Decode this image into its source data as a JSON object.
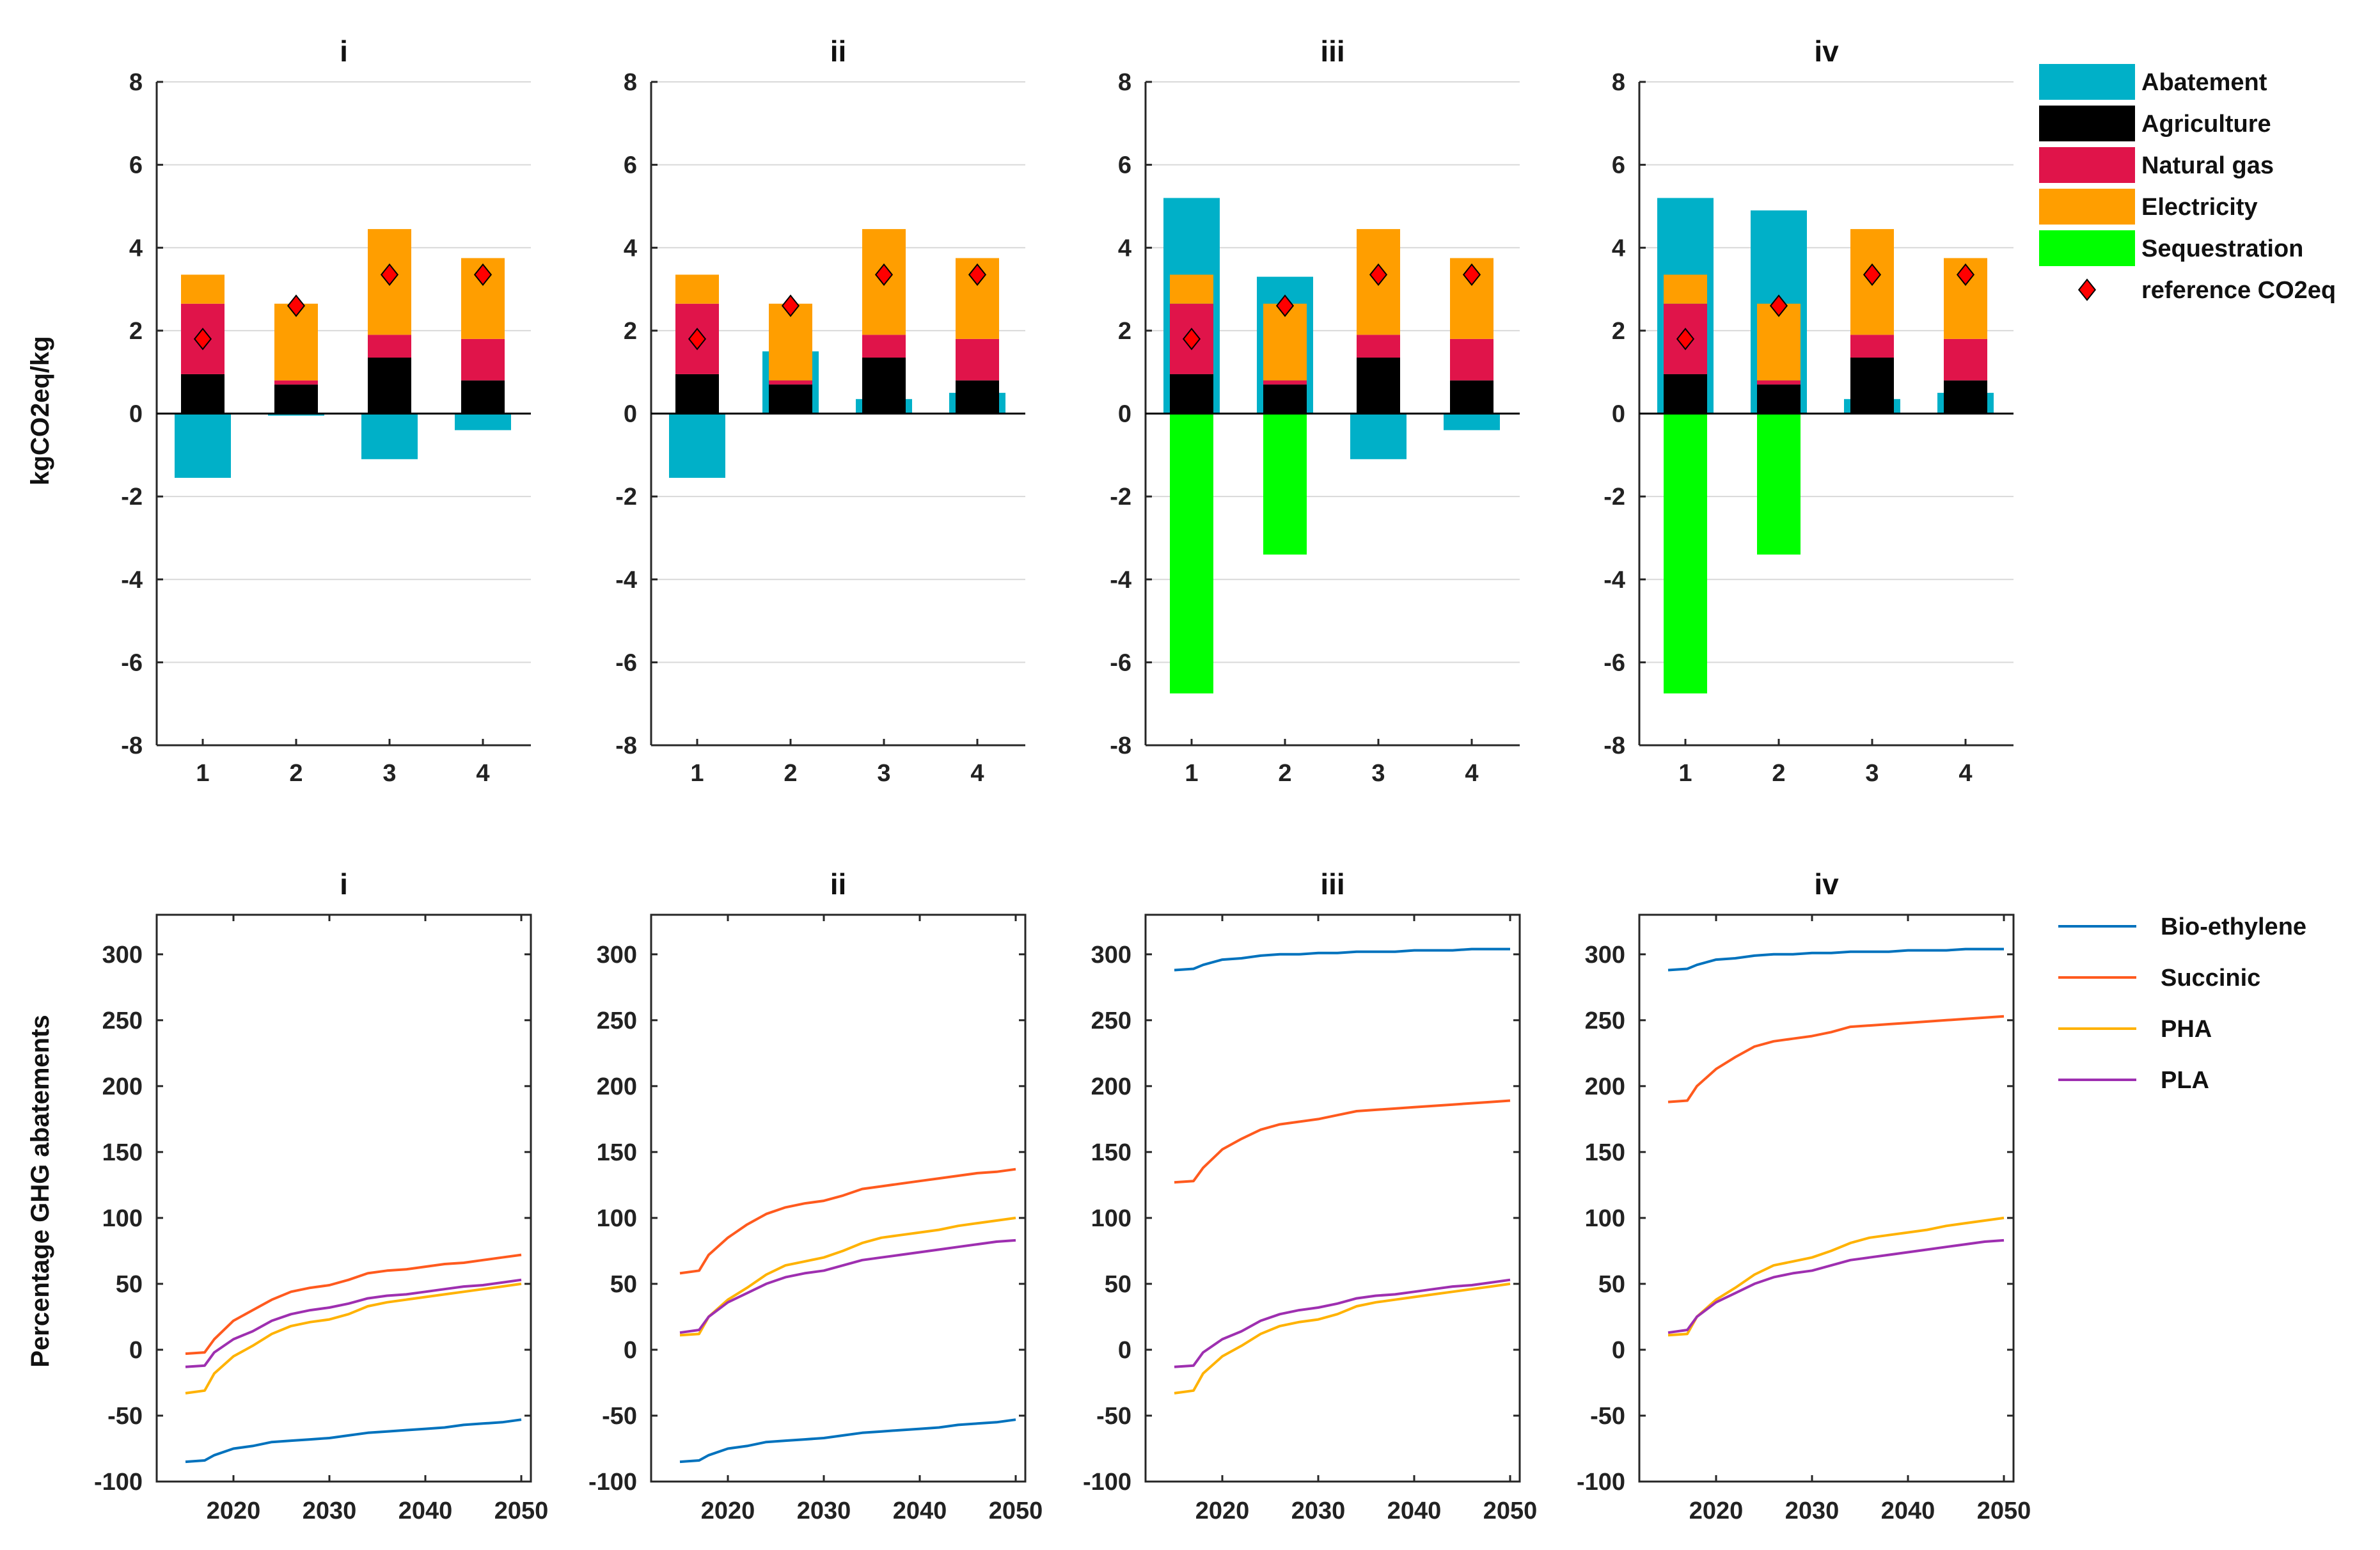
{
  "colors": {
    "abatement": "#00b0c8",
    "agriculture": "#000000",
    "natural_gas": "#e0144a",
    "electricity": "#ff9e00",
    "sequestration": "#00ff00",
    "reference": "#ff0000",
    "bio_ethylene": "#0072bd",
    "succinic": "#ff5a1e",
    "pha": "#ffb200",
    "pla": "#9e2fb0"
  },
  "chart_data": [
    {
      "type": "bar",
      "panel": "top",
      "title": "i",
      "ylabel": "kgCO2eq/kg",
      "ylim": [
        -8,
        8
      ],
      "yticks": [
        -8,
        -6,
        -4,
        -2,
        0,
        2,
        4,
        6,
        8
      ],
      "categories": [
        "1",
        "2",
        "3",
        "4"
      ],
      "series": [
        {
          "name": "Abatement",
          "values": [
            -1.55,
            -0.05,
            -1.1,
            -0.4
          ]
        },
        {
          "name": "Agriculture",
          "values": [
            0.95,
            0.7,
            1.35,
            0.8
          ]
        },
        {
          "name": "Natural gas",
          "values": [
            1.7,
            0.1,
            0.55,
            1.0
          ]
        },
        {
          "name": "Electricity",
          "values": [
            0.7,
            1.85,
            2.55,
            1.95
          ]
        },
        {
          "name": "Sequestration",
          "values": [
            0,
            0,
            0,
            0
          ]
        }
      ],
      "reference": {
        "name": "reference CO2eq",
        "values": [
          1.8,
          2.6,
          3.35,
          3.35
        ]
      }
    },
    {
      "type": "bar",
      "panel": "top",
      "title": "ii",
      "ylabel": "",
      "ylim": [
        -8,
        8
      ],
      "yticks": [
        -8,
        -6,
        -4,
        -2,
        0,
        2,
        4,
        6,
        8
      ],
      "categories": [
        "1",
        "2",
        "3",
        "4"
      ],
      "series": [
        {
          "name": "Abatement",
          "values": [
            -1.55,
            1.5,
            0.35,
            0.5
          ]
        },
        {
          "name": "Agriculture",
          "values": [
            0.95,
            0.7,
            1.35,
            0.8
          ]
        },
        {
          "name": "Natural gas",
          "values": [
            1.7,
            0.1,
            0.55,
            1.0
          ]
        },
        {
          "name": "Electricity",
          "values": [
            0.7,
            1.85,
            2.55,
            1.95
          ]
        },
        {
          "name": "Sequestration",
          "values": [
            0,
            0,
            0,
            0
          ]
        }
      ],
      "reference": {
        "name": "reference CO2eq",
        "values": [
          1.8,
          2.6,
          3.35,
          3.35
        ]
      }
    },
    {
      "type": "bar",
      "panel": "top",
      "title": "iii",
      "ylabel": "",
      "ylim": [
        -8,
        8
      ],
      "yticks": [
        -8,
        -6,
        -4,
        -2,
        0,
        2,
        4,
        6,
        8
      ],
      "categories": [
        "1",
        "2",
        "3",
        "4"
      ],
      "series": [
        {
          "name": "Abatement",
          "values": [
            5.2,
            3.3,
            -1.1,
            -0.4
          ]
        },
        {
          "name": "Agriculture",
          "values": [
            0.95,
            0.7,
            1.35,
            0.8
          ]
        },
        {
          "name": "Natural gas",
          "values": [
            1.7,
            0.1,
            0.55,
            1.0
          ]
        },
        {
          "name": "Electricity",
          "values": [
            0.7,
            1.85,
            2.55,
            1.95
          ]
        },
        {
          "name": "Sequestration",
          "values": [
            -6.75,
            -3.4,
            0,
            0
          ]
        }
      ],
      "reference": {
        "name": "reference CO2eq",
        "values": [
          1.8,
          2.6,
          3.35,
          3.35
        ]
      }
    },
    {
      "type": "bar",
      "panel": "top",
      "title": "iv",
      "ylabel": "",
      "ylim": [
        -8,
        8
      ],
      "yticks": [
        -8,
        -6,
        -4,
        -2,
        0,
        2,
        4,
        6,
        8
      ],
      "categories": [
        "1",
        "2",
        "3",
        "4"
      ],
      "series": [
        {
          "name": "Abatement",
          "values": [
            5.2,
            4.9,
            0.35,
            0.5
          ]
        },
        {
          "name": "Agriculture",
          "values": [
            0.95,
            0.7,
            1.35,
            0.8
          ]
        },
        {
          "name": "Natural gas",
          "values": [
            1.7,
            0.1,
            0.55,
            1.0
          ]
        },
        {
          "name": "Electricity",
          "values": [
            0.7,
            1.85,
            2.55,
            1.95
          ]
        },
        {
          "name": "Sequestration",
          "values": [
            -6.75,
            -3.4,
            0,
            0
          ]
        }
      ],
      "reference": {
        "name": "reference CO2eq",
        "values": [
          1.8,
          2.6,
          3.35,
          3.35
        ]
      }
    },
    {
      "type": "line",
      "panel": "bottom",
      "title": "i",
      "ylabel": "Percentage GHG abatements",
      "xlim": [
        2012,
        2051
      ],
      "ylim": [
        -100,
        330
      ],
      "xticks": [
        2020,
        2030,
        2040,
        2050
      ],
      "yticks": [
        -100,
        -50,
        0,
        50,
        100,
        150,
        200,
        250,
        300
      ],
      "x": [
        2015,
        2017,
        2018,
        2020,
        2022,
        2024,
        2026,
        2028,
        2030,
        2032,
        2034,
        2036,
        2038,
        2040,
        2042,
        2044,
        2046,
        2048,
        2050
      ],
      "series": [
        {
          "name": "Bio-ethylene",
          "values": [
            -85,
            -84,
            -80,
            -75,
            -73,
            -70,
            -69,
            -68,
            -67,
            -65,
            -63,
            -62,
            -61,
            -60,
            -59,
            -57,
            -56,
            -55,
            -53
          ]
        },
        {
          "name": "Succinic",
          "values": [
            -3,
            -2,
            8,
            22,
            30,
            38,
            44,
            47,
            49,
            53,
            58,
            60,
            61,
            63,
            65,
            66,
            68,
            70,
            72
          ]
        },
        {
          "name": "PHA",
          "values": [
            -33,
            -31,
            -18,
            -5,
            3,
            12,
            18,
            21,
            23,
            27,
            33,
            36,
            38,
            40,
            42,
            44,
            46,
            48,
            50
          ]
        },
        {
          "name": "PLA",
          "values": [
            -13,
            -12,
            -2,
            8,
            14,
            22,
            27,
            30,
            32,
            35,
            39,
            41,
            42,
            44,
            46,
            48,
            49,
            51,
            53
          ]
        }
      ]
    },
    {
      "type": "line",
      "panel": "bottom",
      "title": "ii",
      "ylabel": "",
      "xlim": [
        2012,
        2051
      ],
      "ylim": [
        -100,
        330
      ],
      "xticks": [
        2020,
        2030,
        2040,
        2050
      ],
      "yticks": [
        -100,
        -50,
        0,
        50,
        100,
        150,
        200,
        250,
        300
      ],
      "x": [
        2015,
        2017,
        2018,
        2020,
        2022,
        2024,
        2026,
        2028,
        2030,
        2032,
        2034,
        2036,
        2038,
        2040,
        2042,
        2044,
        2046,
        2048,
        2050
      ],
      "series": [
        {
          "name": "Bio-ethylene",
          "values": [
            -85,
            -84,
            -80,
            -75,
            -73,
            -70,
            -69,
            -68,
            -67,
            -65,
            -63,
            -62,
            -61,
            -60,
            -59,
            -57,
            -56,
            -55,
            -53
          ]
        },
        {
          "name": "Succinic",
          "values": [
            58,
            60,
            72,
            85,
            95,
            103,
            108,
            111,
            113,
            117,
            122,
            124,
            126,
            128,
            130,
            132,
            134,
            135,
            137
          ]
        },
        {
          "name": "PHA",
          "values": [
            11,
            12,
            25,
            38,
            47,
            57,
            64,
            67,
            70,
            75,
            81,
            85,
            87,
            89,
            91,
            94,
            96,
            98,
            100
          ]
        },
        {
          "name": "PLA",
          "values": [
            13,
            15,
            25,
            36,
            43,
            50,
            55,
            58,
            60,
            64,
            68,
            70,
            72,
            74,
            76,
            78,
            80,
            82,
            83
          ]
        }
      ]
    },
    {
      "type": "line",
      "panel": "bottom",
      "title": "iii",
      "ylabel": "",
      "xlim": [
        2012,
        2051
      ],
      "ylim": [
        -100,
        330
      ],
      "xticks": [
        2020,
        2030,
        2040,
        2050
      ],
      "yticks": [
        -100,
        -50,
        0,
        50,
        100,
        150,
        200,
        250,
        300
      ],
      "x": [
        2015,
        2017,
        2018,
        2020,
        2022,
        2024,
        2026,
        2028,
        2030,
        2032,
        2034,
        2036,
        2038,
        2040,
        2042,
        2044,
        2046,
        2048,
        2050
      ],
      "series": [
        {
          "name": "Bio-ethylene",
          "values": [
            288,
            289,
            292,
            296,
            297,
            299,
            300,
            300,
            301,
            301,
            302,
            302,
            302,
            303,
            303,
            303,
            304,
            304,
            304
          ]
        },
        {
          "name": "Succinic",
          "values": [
            127,
            128,
            138,
            152,
            160,
            167,
            171,
            173,
            175,
            178,
            181,
            182,
            183,
            184,
            185,
            186,
            187,
            188,
            189
          ]
        },
        {
          "name": "PHA",
          "values": [
            -33,
            -31,
            -18,
            -5,
            3,
            12,
            18,
            21,
            23,
            27,
            33,
            36,
            38,
            40,
            42,
            44,
            46,
            48,
            50
          ]
        },
        {
          "name": "PLA",
          "values": [
            -13,
            -12,
            -2,
            8,
            14,
            22,
            27,
            30,
            32,
            35,
            39,
            41,
            42,
            44,
            46,
            48,
            49,
            51,
            53
          ]
        }
      ]
    },
    {
      "type": "line",
      "panel": "bottom",
      "title": "iv",
      "ylabel": "",
      "xlim": [
        2012,
        2051
      ],
      "ylim": [
        -100,
        330
      ],
      "xticks": [
        2020,
        2030,
        2040,
        2050
      ],
      "yticks": [
        -100,
        -50,
        0,
        50,
        100,
        150,
        200,
        250,
        300
      ],
      "x": [
        2015,
        2017,
        2018,
        2020,
        2022,
        2024,
        2026,
        2028,
        2030,
        2032,
        2034,
        2036,
        2038,
        2040,
        2042,
        2044,
        2046,
        2048,
        2050
      ],
      "series": [
        {
          "name": "Bio-ethylene",
          "values": [
            288,
            289,
            292,
            296,
            297,
            299,
            300,
            300,
            301,
            301,
            302,
            302,
            302,
            303,
            303,
            303,
            304,
            304,
            304
          ]
        },
        {
          "name": "Succinic",
          "values": [
            188,
            189,
            200,
            213,
            222,
            230,
            234,
            236,
            238,
            241,
            245,
            246,
            247,
            248,
            249,
            250,
            251,
            252,
            253
          ]
        },
        {
          "name": "PHA",
          "values": [
            11,
            12,
            25,
            38,
            47,
            57,
            64,
            67,
            70,
            75,
            81,
            85,
            87,
            89,
            91,
            94,
            96,
            98,
            100
          ]
        },
        {
          "name": "PLA",
          "values": [
            13,
            15,
            25,
            36,
            43,
            50,
            55,
            58,
            60,
            64,
            68,
            70,
            72,
            74,
            76,
            78,
            80,
            82,
            83
          ]
        }
      ]
    }
  ],
  "legend_top": [
    {
      "label": "Abatement",
      "color_key": "abatement",
      "shape": "box"
    },
    {
      "label": "Agriculture",
      "color_key": "agriculture",
      "shape": "box"
    },
    {
      "label": "Natural gas",
      "color_key": "natural_gas",
      "shape": "box"
    },
    {
      "label": "Electricity",
      "color_key": "electricity",
      "shape": "box"
    },
    {
      "label": "Sequestration",
      "color_key": "sequestration",
      "shape": "box"
    },
    {
      "label": "reference CO2eq",
      "color_key": "reference",
      "shape": "diamond"
    }
  ],
  "legend_bottom": [
    {
      "label": "Bio-ethylene",
      "color_key": "bio_ethylene"
    },
    {
      "label": "Succinic",
      "color_key": "succinic"
    },
    {
      "label": "PHA",
      "color_key": "pha"
    },
    {
      "label": "PLA",
      "color_key": "pla"
    }
  ]
}
